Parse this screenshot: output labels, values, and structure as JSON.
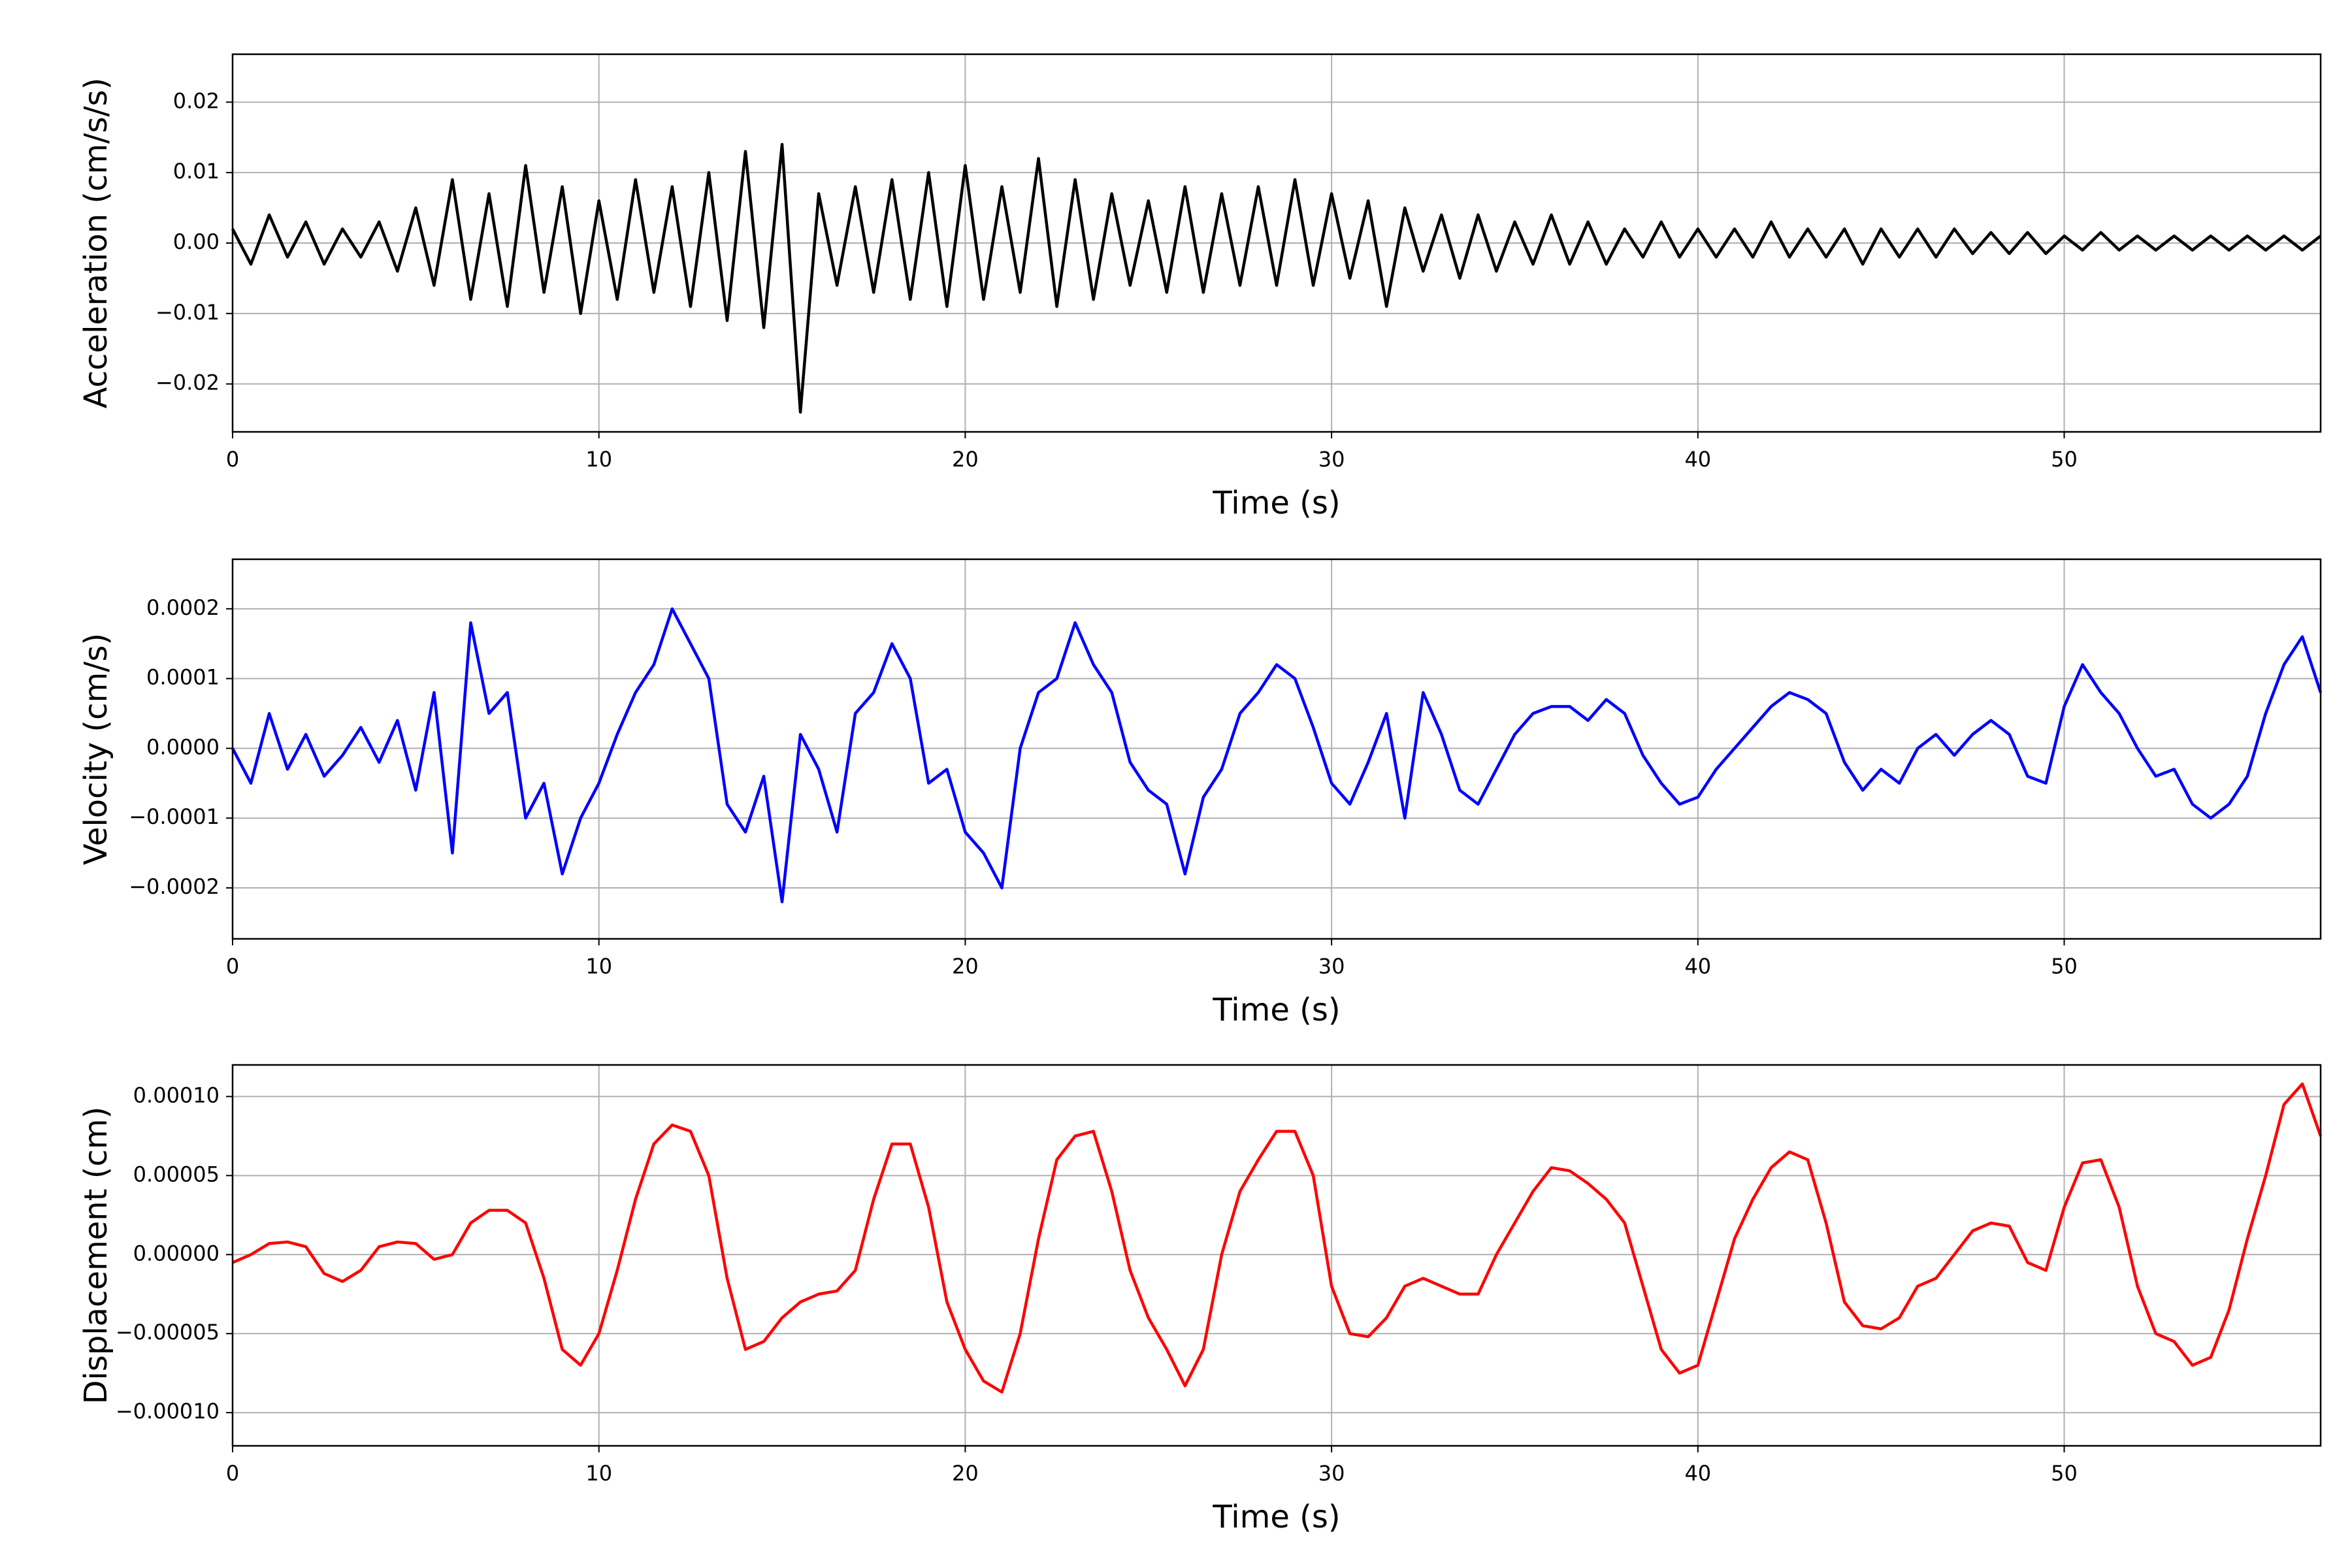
{
  "chart_data": [
    {
      "type": "line",
      "ylabel": "Acceleration (cm/s/s)",
      "xlabel": "Time (s)",
      "color": "#000000",
      "grid": true,
      "xlim": [
        0,
        57
      ],
      "ylim": [
        -0.0268,
        0.0268
      ],
      "xticks": [
        0,
        10,
        20,
        30,
        40,
        50
      ],
      "yticks": [
        {
          "value": -0.02,
          "label": "−0.02"
        },
        {
          "value": -0.01,
          "label": "−0.01"
        },
        {
          "value": 0,
          "label": "0.00"
        },
        {
          "value": 0.01,
          "label": "0.01"
        },
        {
          "value": 0.02,
          "label": "0.02"
        }
      ],
      "x": [
        0,
        0.5,
        1,
        1.5,
        2,
        2.5,
        3,
        3.5,
        4,
        4.5,
        5,
        5.5,
        6,
        6.5,
        7,
        7.5,
        8,
        8.5,
        9,
        9.5,
        10,
        10.5,
        11,
        11.5,
        12,
        12.5,
        13,
        13.5,
        14,
        14.5,
        15,
        15.5,
        16,
        16.5,
        17,
        17.5,
        18,
        18.5,
        19,
        19.5,
        20,
        20.5,
        21,
        21.5,
        22,
        22.5,
        23,
        23.5,
        24,
        24.5,
        25,
        25.5,
        26,
        26.5,
        27,
        27.5,
        28,
        28.5,
        29,
        29.5,
        30,
        30.5,
        31,
        31.5,
        32,
        32.5,
        33,
        33.5,
        34,
        34.5,
        35,
        35.5,
        36,
        36.5,
        37,
        37.5,
        38,
        38.5,
        39,
        39.5,
        40,
        40.5,
        41,
        41.5,
        42,
        42.5,
        43,
        43.5,
        44,
        44.5,
        45,
        45.5,
        46,
        46.5,
        47,
        47.5,
        48,
        48.5,
        49,
        49.5,
        50,
        50.5,
        51,
        51.5,
        52,
        52.5,
        53,
        53.5,
        54,
        54.5,
        55,
        55.5,
        56,
        56.5,
        57
      ],
      "values": [
        0.002,
        -0.003,
        0.004,
        -0.002,
        0.003,
        -0.003,
        0.002,
        -0.002,
        0.003,
        -0.004,
        0.005,
        -0.006,
        0.009,
        -0.008,
        0.007,
        -0.009,
        0.011,
        -0.007,
        0.008,
        -0.01,
        0.006,
        -0.008,
        0.009,
        -0.007,
        0.008,
        -0.009,
        0.01,
        -0.011,
        0.013,
        -0.012,
        0.014,
        -0.024,
        0.007,
        -0.006,
        0.008,
        -0.007,
        0.009,
        -0.008,
        0.01,
        -0.009,
        0.011,
        -0.008,
        0.008,
        -0.007,
        0.012,
        -0.009,
        0.009,
        -0.008,
        0.007,
        -0.006,
        0.006,
        -0.007,
        0.008,
        -0.007,
        0.007,
        -0.006,
        0.008,
        -0.006,
        0.009,
        -0.006,
        0.007,
        -0.005,
        0.006,
        -0.009,
        0.005,
        -0.004,
        0.004,
        -0.005,
        0.004,
        -0.004,
        0.003,
        -0.003,
        0.004,
        -0.003,
        0.003,
        -0.003,
        0.002,
        -0.002,
        0.003,
        -0.002,
        0.002,
        -0.002,
        0.002,
        -0.002,
        0.003,
        -0.002,
        0.002,
        -0.002,
        0.002,
        -0.003,
        0.002,
        -0.002,
        0.002,
        -0.002,
        0.002,
        -0.0015,
        0.0015,
        -0.0015,
        0.0015,
        -0.0015,
        0.001,
        -0.001,
        0.0015,
        -0.001,
        0.001,
        -0.001,
        0.001,
        -0.001,
        0.001,
        -0.001,
        0.001,
        -0.001,
        0.001,
        -0.001,
        0.001
      ]
    },
    {
      "type": "line",
      "ylabel": "Velocity (cm/s)",
      "xlabel": "Time (s)",
      "color": "#0000ff",
      "grid": true,
      "xlim": [
        0,
        57
      ],
      "ylim": [
        -0.000273,
        0.000271
      ],
      "xticks": [
        0,
        10,
        20,
        30,
        40,
        50
      ],
      "yticks": [
        {
          "value": -0.0002,
          "label": "−0.0002"
        },
        {
          "value": -0.0001,
          "label": "−0.0001"
        },
        {
          "value": 0,
          "label": "0.0000"
        },
        {
          "value": 0.0001,
          "label": "0.0001"
        },
        {
          "value": 0.0002,
          "label": "0.0002"
        }
      ],
      "x": [
        0,
        0.5,
        1,
        1.5,
        2,
        2.5,
        3,
        3.5,
        4,
        4.5,
        5,
        5.5,
        6,
        6.5,
        7,
        7.5,
        8,
        8.5,
        9,
        9.5,
        10,
        10.5,
        11,
        11.5,
        12,
        12.5,
        13,
        13.5,
        14,
        14.5,
        15,
        15.5,
        16,
        16.5,
        17,
        17.5,
        18,
        18.5,
        19,
        19.5,
        20,
        20.5,
        21,
        21.5,
        22,
        22.5,
        23,
        23.5,
        24,
        24.5,
        25,
        25.5,
        26,
        26.5,
        27,
        27.5,
        28,
        28.5,
        29,
        29.5,
        30,
        30.5,
        31,
        31.5,
        32,
        32.5,
        33,
        33.5,
        34,
        34.5,
        35,
        35.5,
        36,
        36.5,
        37,
        37.5,
        38,
        38.5,
        39,
        39.5,
        40,
        40.5,
        41,
        41.5,
        42,
        42.5,
        43,
        43.5,
        44,
        44.5,
        45,
        45.5,
        46,
        46.5,
        47,
        47.5,
        48,
        48.5,
        49,
        49.5,
        50,
        50.5,
        51,
        51.5,
        52,
        52.5,
        53,
        53.5,
        54,
        54.5,
        55,
        55.5,
        56,
        56.5,
        57
      ],
      "values": [
        0,
        -5e-05,
        5e-05,
        -3e-05,
        2e-05,
        -4e-05,
        -1e-05,
        3e-05,
        -2e-05,
        4e-05,
        -6e-05,
        8e-05,
        -0.00015,
        0.00018,
        5e-05,
        8e-05,
        -0.0001,
        -5e-05,
        -0.00018,
        -0.0001,
        -5e-05,
        2e-05,
        8e-05,
        0.00012,
        0.0002,
        0.00015,
        0.0001,
        -8e-05,
        -0.00012,
        -4e-05,
        -0.00022,
        2e-05,
        -3e-05,
        -0.00012,
        5e-05,
        8e-05,
        0.00015,
        0.0001,
        -5e-05,
        -3e-05,
        -0.00012,
        -0.00015,
        -0.0002,
        0,
        8e-05,
        0.0001,
        0.00018,
        0.00012,
        8e-05,
        -2e-05,
        -6e-05,
        -8e-05,
        -0.00018,
        -7e-05,
        -3e-05,
        5e-05,
        8e-05,
        0.00012,
        0.0001,
        3e-05,
        -5e-05,
        -8e-05,
        -2e-05,
        5e-05,
        -0.0001,
        8e-05,
        2e-05,
        -6e-05,
        -8e-05,
        -3e-05,
        2e-05,
        5e-05,
        6e-05,
        6e-05,
        4e-05,
        7e-05,
        5e-05,
        -1e-05,
        -5e-05,
        -8e-05,
        -7e-05,
        -3e-05,
        0,
        3e-05,
        6e-05,
        8e-05,
        7e-05,
        5e-05,
        -2e-05,
        -6e-05,
        -3e-05,
        -5e-05,
        0,
        2e-05,
        -1e-05,
        2e-05,
        4e-05,
        2e-05,
        -4e-05,
        -5e-05,
        6e-05,
        0.00012,
        8e-05,
        5e-05,
        0,
        -4e-05,
        -3e-05,
        -8e-05,
        -0.0001,
        -8e-05,
        -4e-05,
        5e-05,
        0.00012,
        0.00016,
        8e-05
      ]
    },
    {
      "type": "line",
      "ylabel": "Displacement (cm)",
      "xlabel": "Time (s)",
      "color": "#ff0000",
      "grid": true,
      "xlim": [
        0,
        57
      ],
      "ylim": [
        -0.000121,
        0.00012
      ],
      "xticks": [
        0,
        10,
        20,
        30,
        40,
        50
      ],
      "yticks": [
        {
          "value": -0.0001,
          "label": "−0.00010"
        },
        {
          "value": -5e-05,
          "label": "−0.00005"
        },
        {
          "value": 0,
          "label": "0.00000"
        },
        {
          "value": 5e-05,
          "label": "0.00005"
        },
        {
          "value": 0.0001,
          "label": "0.00010"
        }
      ],
      "x": [
        0,
        0.5,
        1,
        1.5,
        2,
        2.5,
        3,
        3.5,
        4,
        4.5,
        5,
        5.5,
        6,
        6.5,
        7,
        7.5,
        8,
        8.5,
        9,
        9.5,
        10,
        10.5,
        11,
        11.5,
        12,
        12.5,
        13,
        13.5,
        14,
        14.5,
        15,
        15.5,
        16,
        16.5,
        17,
        17.5,
        18,
        18.5,
        19,
        19.5,
        20,
        20.5,
        21,
        21.5,
        22,
        22.5,
        23,
        23.5,
        24,
        24.5,
        25,
        25.5,
        26,
        26.5,
        27,
        27.5,
        28,
        28.5,
        29,
        29.5,
        30,
        30.5,
        31,
        31.5,
        32,
        32.5,
        33,
        33.5,
        34,
        34.5,
        35,
        35.5,
        36,
        36.5,
        37,
        37.5,
        38,
        38.5,
        39,
        39.5,
        40,
        40.5,
        41,
        41.5,
        42,
        42.5,
        43,
        43.5,
        44,
        44.5,
        45,
        45.5,
        46,
        46.5,
        47,
        47.5,
        48,
        48.5,
        49,
        49.5,
        50,
        50.5,
        51,
        51.5,
        52,
        52.5,
        53,
        53.5,
        54,
        54.5,
        55,
        55.5,
        56,
        56.5,
        57
      ],
      "values": [
        -5e-06,
        0,
        7e-06,
        8e-06,
        5e-06,
        -1.2e-05,
        -1.7e-05,
        -1e-05,
        5e-06,
        8e-06,
        7e-06,
        -3e-06,
        0,
        2e-05,
        2.8e-05,
        2.8e-05,
        2e-05,
        -1.5e-05,
        -6e-05,
        -7e-05,
        -5e-05,
        -1e-05,
        3.5e-05,
        7e-05,
        8.2e-05,
        7.8e-05,
        5e-05,
        -1.5e-05,
        -6e-05,
        -5.5e-05,
        -4e-05,
        -3e-05,
        -2.5e-05,
        -2.3e-05,
        -1e-05,
        3.5e-05,
        7e-05,
        7e-05,
        3e-05,
        -3e-05,
        -6e-05,
        -8e-05,
        -8.7e-05,
        -5e-05,
        1e-05,
        6e-05,
        7.5e-05,
        7.8e-05,
        4e-05,
        -1e-05,
        -4e-05,
        -6e-05,
        -8.3e-05,
        -6e-05,
        0,
        4e-05,
        6e-05,
        7.8e-05,
        7.8e-05,
        5e-05,
        -2e-05,
        -5e-05,
        -5.2e-05,
        -4e-05,
        -2e-05,
        -1.5e-05,
        -2e-05,
        -2.5e-05,
        -2.5e-05,
        0,
        2e-05,
        4e-05,
        5.5e-05,
        5.3e-05,
        4.5e-05,
        3.5e-05,
        2e-05,
        -2e-05,
        -6e-05,
        -7.5e-05,
        -7e-05,
        -3e-05,
        1e-05,
        3.5e-05,
        5.5e-05,
        6.5e-05,
        6e-05,
        2e-05,
        -3e-05,
        -4.5e-05,
        -4.7e-05,
        -4e-05,
        -2e-05,
        -1.5e-05,
        0,
        1.5e-05,
        2e-05,
        1.8e-05,
        -5e-06,
        -1e-05,
        3e-05,
        5.8e-05,
        6e-05,
        3e-05,
        -2e-05,
        -5e-05,
        -5.5e-05,
        -7e-05,
        -6.5e-05,
        -3.5e-05,
        1e-05,
        5e-05,
        9.5e-05,
        0.000108,
        7.5e-05
      ]
    }
  ]
}
